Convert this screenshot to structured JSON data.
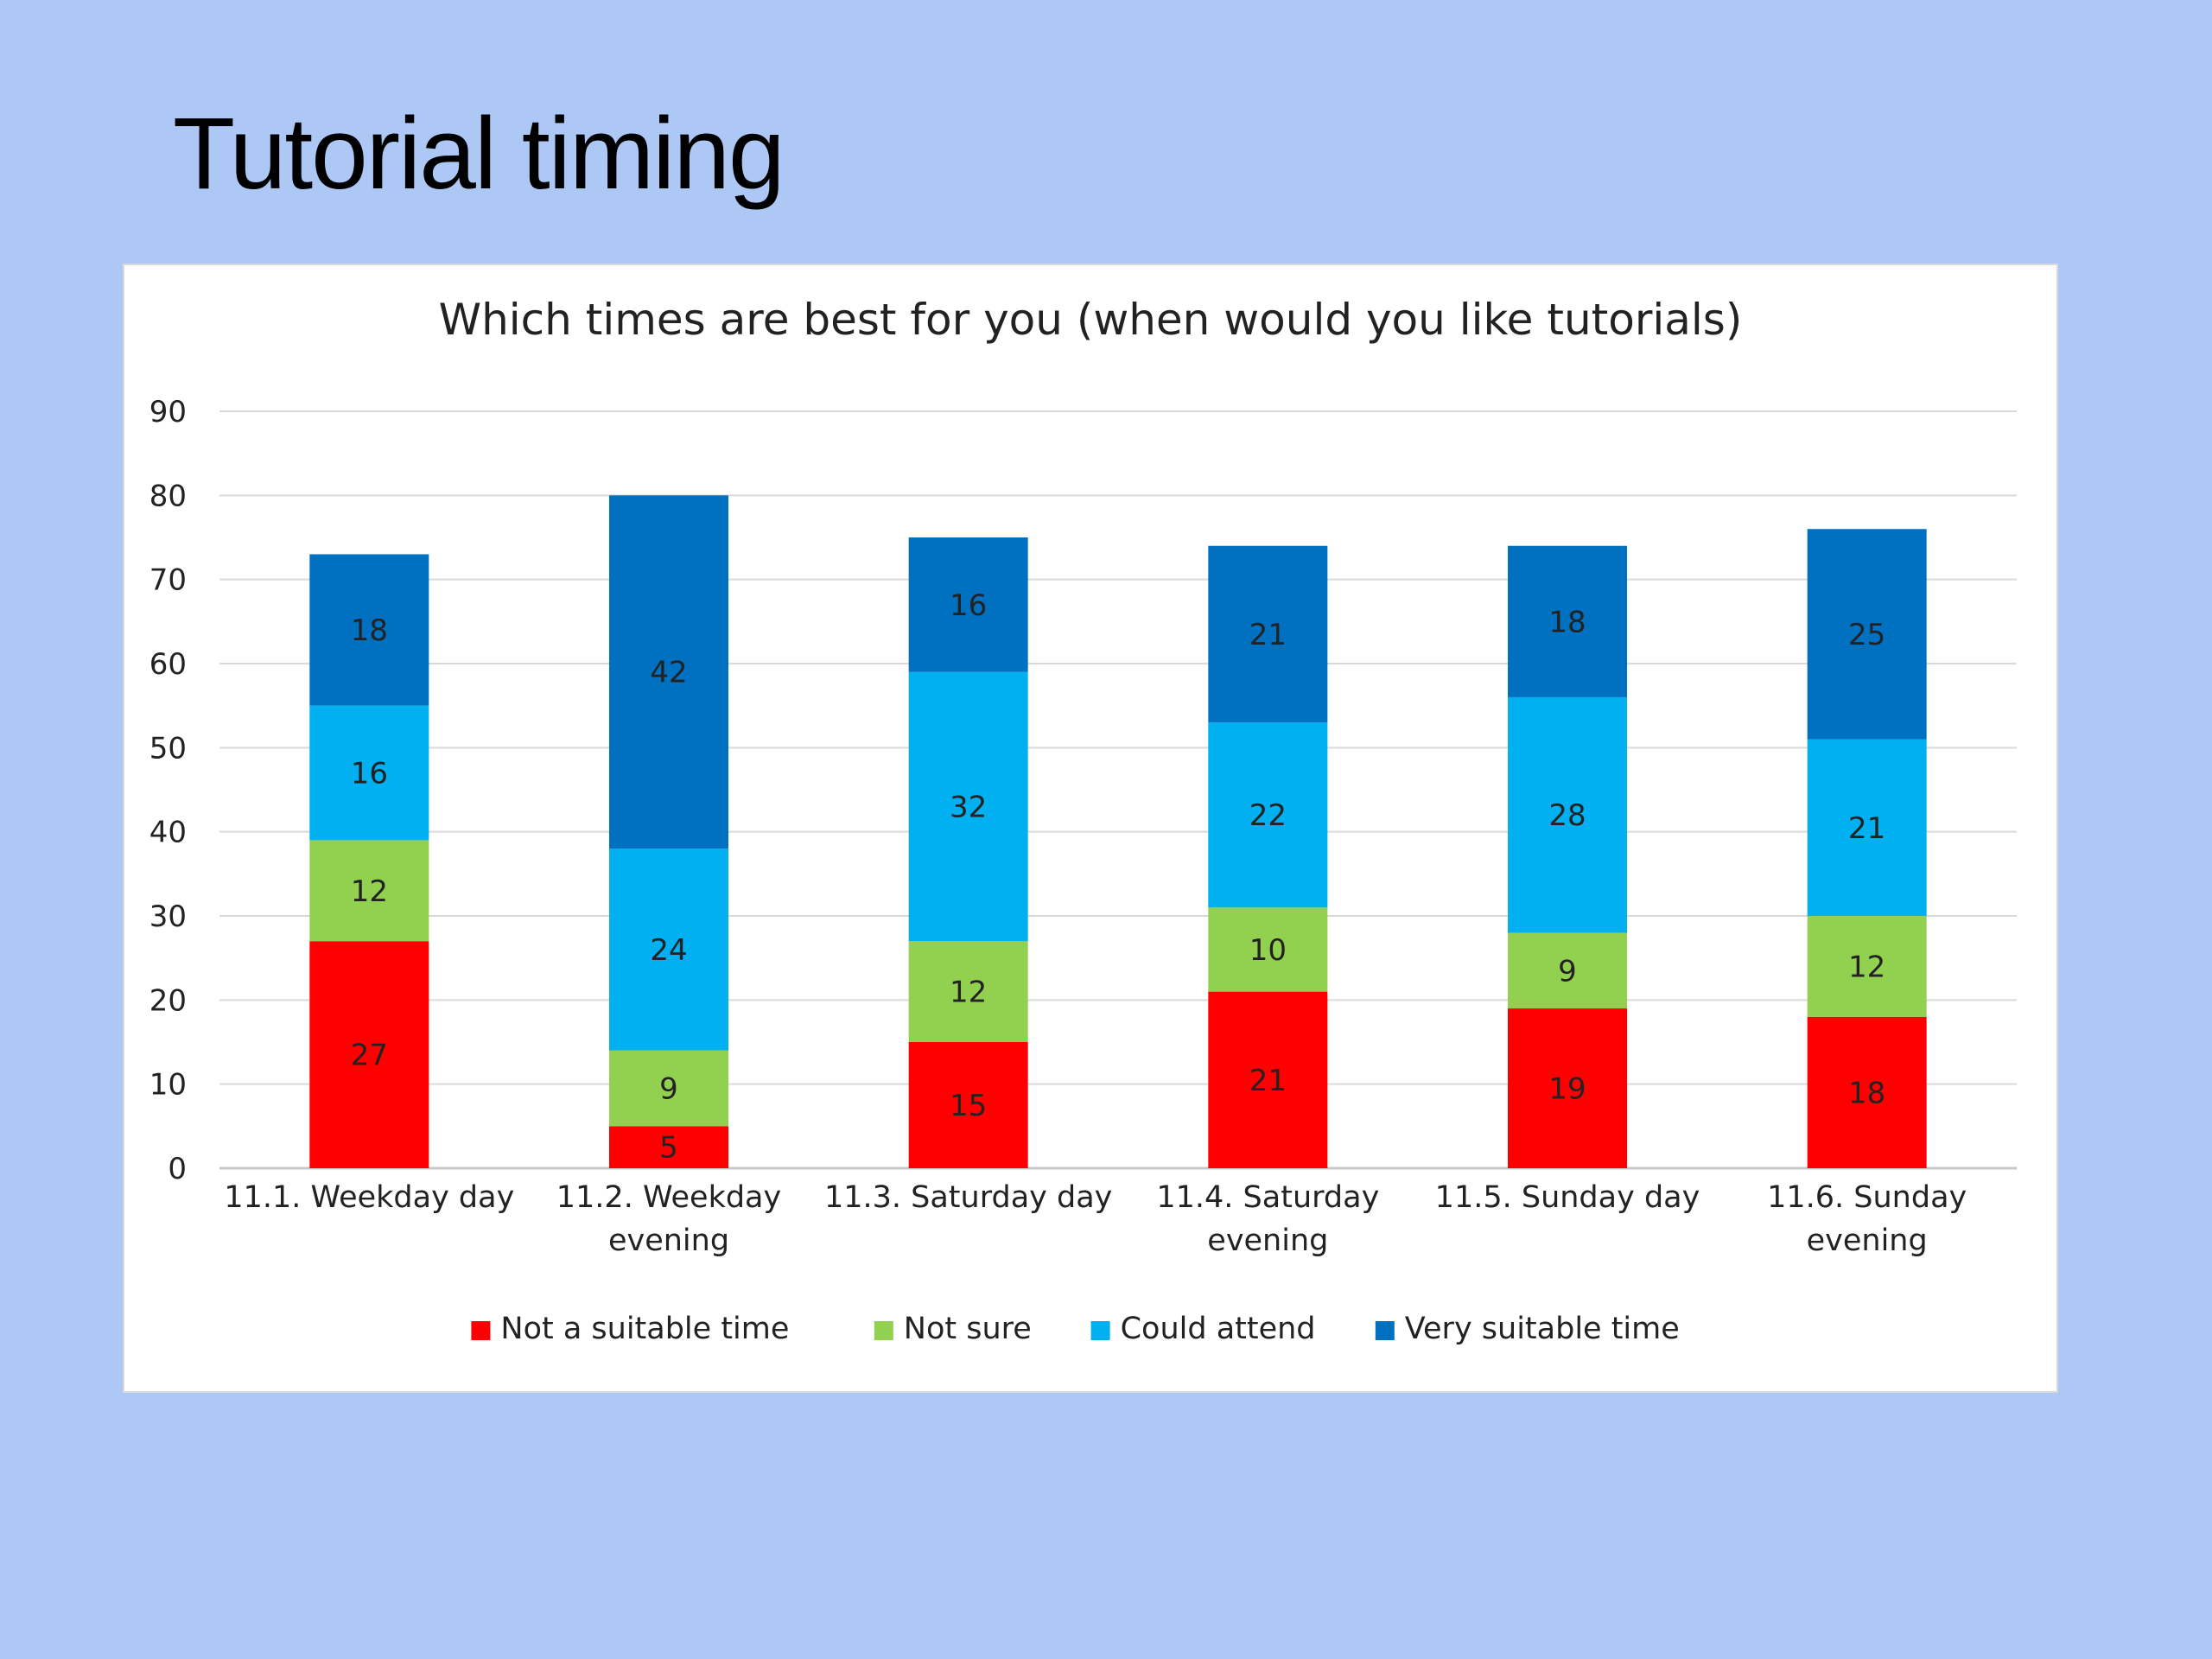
{
  "slide": {
    "title": "Tutorial timing"
  },
  "chart_data": {
    "type": "bar",
    "stacked": true,
    "title": "Which times are best for you (when would you like tutorials)",
    "xlabel": "",
    "ylabel": "",
    "ylim": [
      0,
      90
    ],
    "yticks": [
      0,
      10,
      20,
      30,
      40,
      50,
      60,
      70,
      80,
      90
    ],
    "grid": true,
    "legend_position": "bottom",
    "categories": [
      [
        "11.1. Weekday day"
      ],
      [
        "11.2. Weekday",
        "evening"
      ],
      [
        "11.3. Saturday day"
      ],
      [
        "11.4. Saturday",
        "evening"
      ],
      [
        "11.5. Sunday day"
      ],
      [
        "11.6. Sunday",
        "evening"
      ]
    ],
    "series": [
      {
        "name": "Not a suitable time",
        "color": "#ff0000",
        "values": [
          27,
          5,
          15,
          21,
          19,
          18
        ]
      },
      {
        "name": "Not sure",
        "color": "#92d050",
        "values": [
          12,
          9,
          12,
          10,
          9,
          12
        ]
      },
      {
        "name": "Could attend",
        "color": "#00b0f0",
        "values": [
          16,
          24,
          32,
          22,
          28,
          21
        ]
      },
      {
        "name": "Very suitable time",
        "color": "#0070c0",
        "values": [
          18,
          42,
          16,
          21,
          18,
          25
        ]
      }
    ]
  }
}
